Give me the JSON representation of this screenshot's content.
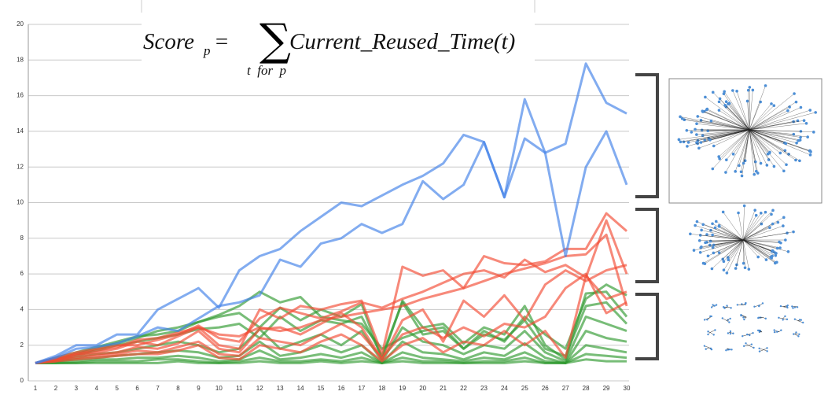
{
  "chart_data": {
    "type": "line",
    "formula": {
      "lhs": "Score",
      "lhs_sub": "p",
      "equals": "=",
      "sum": "∑",
      "sum_under": "t  for  p",
      "rhs": "Current_Reused_Time(t)"
    },
    "x": [
      1,
      2,
      3,
      4,
      5,
      6,
      7,
      8,
      9,
      10,
      11,
      12,
      13,
      14,
      15,
      16,
      17,
      18,
      19,
      20,
      21,
      22,
      23,
      24,
      25,
      26,
      27,
      28,
      29,
      30
    ],
    "xlim": [
      1,
      30
    ],
    "xticks": [
      1,
      2,
      3,
      4,
      5,
      6,
      7,
      8,
      9,
      10,
      11,
      12,
      13,
      14,
      15,
      16,
      17,
      18,
      19,
      20,
      21,
      22,
      23,
      24,
      25,
      26,
      27,
      28,
      29,
      30
    ],
    "ylim": [
      0,
      20
    ],
    "yticks": [
      0,
      2,
      4,
      6,
      8,
      10,
      12,
      14,
      16,
      18,
      20
    ],
    "grid": true,
    "series": [
      {
        "color": "#2f9a2f",
        "values": [
          1,
          1.0,
          1.0,
          1.0,
          1.0,
          1.0,
          1.0,
          1.1,
          1.0,
          1.0,
          1.0,
          1.1,
          1.0,
          1.0,
          1.1,
          1.0,
          1.1,
          1.0,
          1.1,
          1.0,
          1.0,
          1.0,
          1.0,
          1.0,
          1.1,
          1.0,
          1.0,
          1.2,
          1.1,
          1.1
        ]
      },
      {
        "color": "#2f9a2f",
        "values": [
          1,
          1.0,
          1.0,
          1.1,
          1.1,
          1.1,
          1.2,
          1.2,
          1.1,
          1.0,
          1.1,
          1.3,
          1.1,
          1.1,
          1.2,
          1.1,
          1.3,
          1.0,
          1.3,
          1.1,
          1.1,
          1.0,
          1.1,
          1.1,
          1.3,
          1.0,
          1.0,
          1.5,
          1.4,
          1.3
        ]
      },
      {
        "color": "#2f9a2f",
        "values": [
          1,
          1.0,
          1.1,
          1.2,
          1.2,
          1.3,
          1.3,
          1.4,
          1.3,
          1.1,
          1.2,
          1.7,
          1.2,
          1.3,
          1.5,
          1.3,
          1.6,
          1.0,
          1.6,
          1.3,
          1.2,
          1.1,
          1.3,
          1.2,
          1.6,
          1.1,
          1.0,
          2.0,
          1.8,
          1.6
        ]
      },
      {
        "color": "#2f9a2f",
        "values": [
          1,
          1.1,
          1.2,
          1.3,
          1.4,
          1.5,
          1.6,
          1.7,
          1.6,
          1.3,
          1.4,
          2.2,
          1.4,
          1.6,
          2.0,
          1.6,
          2.0,
          1.0,
          2.2,
          1.6,
          1.5,
          1.2,
          1.6,
          1.4,
          2.1,
          1.3,
          1.0,
          2.8,
          2.4,
          2.2
        ]
      },
      {
        "color": "#2f9a2f",
        "values": [
          1,
          1.1,
          1.3,
          1.5,
          1.6,
          1.8,
          2.0,
          2.2,
          2.0,
          1.6,
          1.8,
          2.9,
          1.8,
          2.2,
          2.6,
          2.0,
          2.8,
          1.1,
          3.0,
          2.2,
          2.0,
          1.5,
          2.0,
          1.8,
          2.8,
          1.6,
          1.1,
          3.6,
          3.2,
          2.8
        ]
      },
      {
        "color": "#2f9a2f",
        "values": [
          1,
          1.2,
          1.4,
          1.7,
          2.0,
          2.2,
          2.4,
          2.6,
          2.9,
          3.0,
          3.2,
          2.4,
          3.6,
          2.8,
          3.4,
          3.2,
          3.6,
          1.4,
          4.4,
          2.6,
          2.8,
          1.8,
          2.6,
          2.3,
          3.4,
          1.8,
          1.4,
          4.2,
          4.4,
          3.2
        ]
      },
      {
        "color": "#2f9a2f",
        "values": [
          1,
          1.2,
          1.5,
          1.8,
          2.1,
          2.4,
          2.8,
          3.0,
          3.3,
          3.6,
          3.8,
          3.0,
          4.1,
          3.4,
          4.0,
          3.6,
          4.3,
          1.2,
          4.5,
          3.0,
          3.2,
          2.1,
          3.0,
          2.6,
          4.2,
          2.0,
          1.2,
          4.9,
          5.0,
          3.6
        ]
      },
      {
        "color": "#2f9a2f",
        "values": [
          1,
          1.3,
          1.6,
          1.9,
          2.2,
          2.5,
          2.6,
          2.8,
          3.3,
          3.7,
          4.2,
          5.0,
          4.4,
          4.7,
          3.6,
          3.4,
          3.2,
          1.8,
          2.4,
          2.8,
          3.0,
          1.8,
          2.8,
          2.2,
          3.6,
          2.6,
          1.8,
          4.6,
          5.4,
          4.8
        ]
      },
      {
        "color": "#f24a33",
        "values": [
          1,
          1.1,
          1.2,
          1.3,
          1.4,
          1.5,
          1.5,
          1.7,
          2.0,
          1.3,
          1.2,
          2.0,
          1.8,
          1.6,
          2.2,
          2.6,
          2.0,
          1.1,
          2.0,
          2.4,
          1.6,
          2.2,
          2.0,
          2.8,
          2.0,
          2.8,
          1.3,
          5.9,
          4.6,
          5.0
        ]
      },
      {
        "color": "#f24a33",
        "values": [
          1,
          1.2,
          1.3,
          1.4,
          1.5,
          1.7,
          1.6,
          1.9,
          2.2,
          1.5,
          1.4,
          2.4,
          2.2,
          2.0,
          2.6,
          3.2,
          2.6,
          1.3,
          2.6,
          3.0,
          2.4,
          3.0,
          2.5,
          3.2,
          3.0,
          3.6,
          5.2,
          6.0,
          3.8,
          4.4
        ]
      },
      {
        "color": "#f24a33",
        "values": [
          1,
          1.1,
          1.4,
          1.5,
          1.6,
          1.9,
          1.8,
          2.1,
          2.8,
          1.8,
          1.6,
          2.9,
          3.0,
          2.6,
          3.2,
          3.8,
          3.0,
          1.2,
          3.4,
          4.0,
          2.2,
          4.5,
          3.6,
          4.8,
          3.4,
          5.4,
          6.2,
          5.6,
          6.2,
          6.5
        ]
      },
      {
        "color": "#f24a33",
        "values": [
          1,
          1.2,
          1.5,
          1.7,
          1.9,
          2.3,
          2.4,
          2.7,
          3.0,
          2.6,
          2.5,
          3.0,
          2.8,
          3.0,
          3.4,
          3.6,
          3.8,
          4.0,
          4.2,
          4.6,
          4.9,
          5.2,
          5.6,
          6.0,
          6.3,
          6.6,
          7.0,
          7.1,
          8.2,
          4.2
        ]
      },
      {
        "color": "#f24a33",
        "values": [
          1,
          1.3,
          1.6,
          1.8,
          2.0,
          2.0,
          2.3,
          2.6,
          3.1,
          2.4,
          2.2,
          3.5,
          4.1,
          3.8,
          3.5,
          3.9,
          4.4,
          4.1,
          4.6,
          5.0,
          5.5,
          6.0,
          6.2,
          5.8,
          6.8,
          6.1,
          6.5,
          5.8,
          9.0,
          6.0
        ]
      },
      {
        "color": "#f24a33",
        "values": [
          1,
          1.2,
          1.5,
          1.6,
          1.8,
          2.2,
          2.0,
          2.5,
          3.0,
          2.0,
          1.8,
          4.0,
          3.5,
          4.2,
          4.0,
          4.3,
          4.5,
          1.5,
          6.4,
          5.9,
          6.2,
          5.2,
          7.0,
          6.6,
          6.5,
          6.7,
          7.4,
          7.4,
          9.4,
          8.4
        ]
      },
      {
        "color": "#3f7fe8",
        "values": [
          1,
          1.3,
          1.8,
          1.9,
          2.1,
          2.5,
          3.0,
          2.8,
          3.5,
          4.2,
          4.4,
          4.8,
          6.8,
          6.4,
          7.7,
          8.0,
          8.8,
          8.3,
          8.8,
          11.2,
          10.2,
          11.0,
          13.4,
          10.3,
          13.6,
          12.8,
          13.3,
          17.8,
          15.6,
          15.0
        ]
      },
      {
        "color": "#3f7fe8",
        "values": [
          1,
          1.4,
          2.0,
          2.0,
          2.6,
          2.6,
          4.0,
          4.6,
          5.2,
          4.1,
          6.2,
          7.0,
          7.4,
          8.4,
          9.2,
          10.0,
          9.8,
          10.4,
          11.0,
          11.5,
          12.2,
          13.8,
          13.4,
          10.3,
          15.8,
          12.8,
          7.0,
          12.0,
          14.0,
          11.0
        ]
      }
    ]
  }
}
